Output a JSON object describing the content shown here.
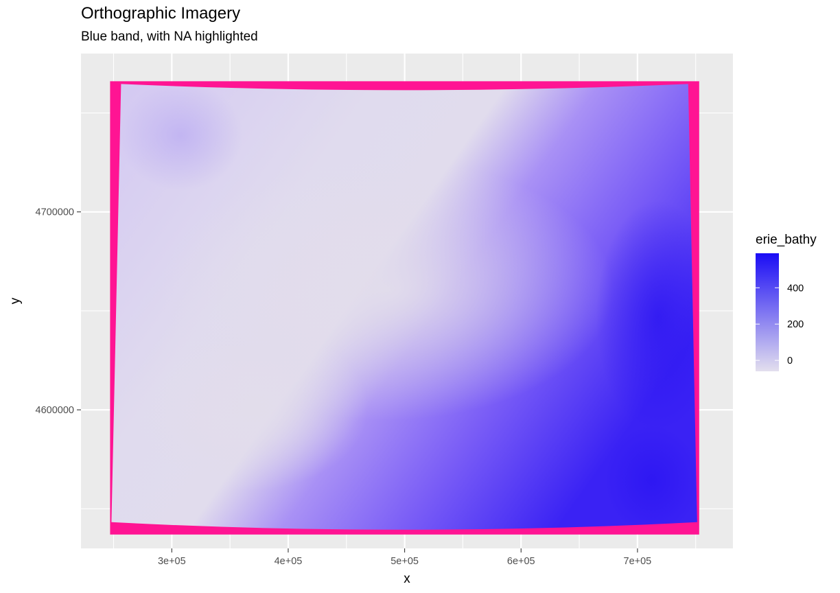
{
  "chart_data": {
    "type": "heatmap",
    "title": "Orthographic Imagery",
    "subtitle": "Blue band, with NA highlighted",
    "xlabel": "x",
    "ylabel": "y",
    "xlim": [
      222000,
      782000
    ],
    "ylim": [
      4530000,
      4780000
    ],
    "x_ticks": [
      {
        "value": 300000,
        "label": "3e+05"
      },
      {
        "value": 400000,
        "label": "4e+05"
      },
      {
        "value": 500000,
        "label": "5e+05"
      },
      {
        "value": 600000,
        "label": "6e+05"
      },
      {
        "value": 700000,
        "label": "7e+05"
      }
    ],
    "y_ticks": [
      {
        "value": 4600000,
        "label": "4600000"
      },
      {
        "value": 4700000,
        "label": "4700000"
      }
    ],
    "raster_extent": {
      "xmin": 247000,
      "xmax": 753000,
      "ymin": 4537000,
      "ymax": 4766000
    },
    "grid": true,
    "legend": {
      "title": "erie_bathy",
      "placement": "right",
      "range": [
        -60,
        590
      ],
      "breaks": [
        {
          "value": 0,
          "label": "0"
        },
        {
          "value": 200,
          "label": "200"
        },
        {
          "value": 400,
          "label": "400"
        }
      ],
      "low_color": "#e3dfee",
      "high_color": "#1a0cf5"
    },
    "na_color": "#ff1493",
    "panel_color": "#ebebeb",
    "grid_color": "#ffffff"
  }
}
